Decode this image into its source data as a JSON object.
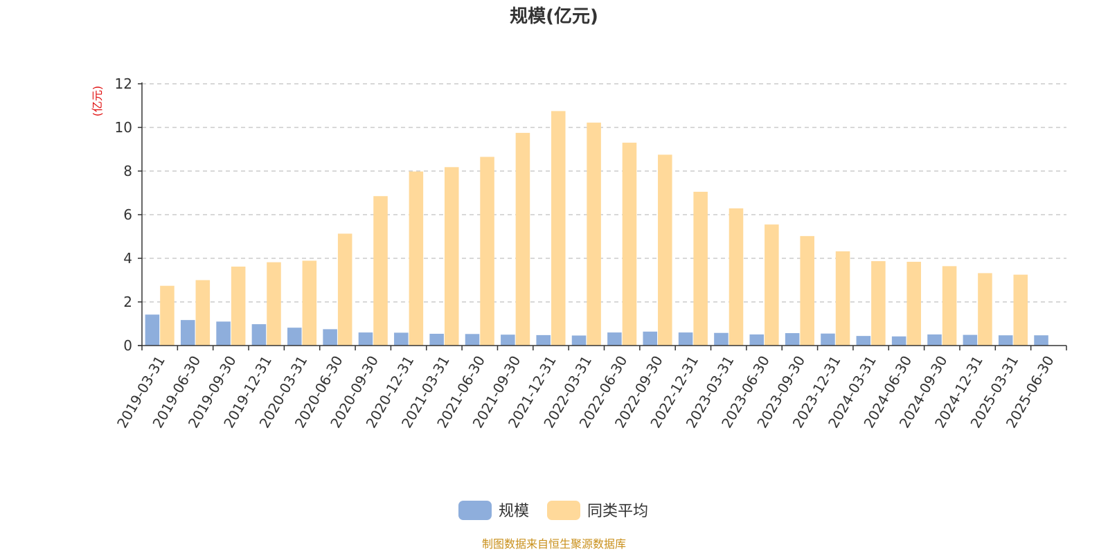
{
  "chart_data": {
    "type": "bar",
    "title": "规模(亿元)",
    "ylabel": "(亿元)",
    "ylim": [
      0,
      12
    ],
    "yticks": [
      0,
      2,
      4,
      6,
      8,
      10,
      12
    ],
    "grid": true,
    "legend_position": "bottom-center",
    "categories": [
      "2019-03-31",
      "2019-06-30",
      "2019-09-30",
      "2019-12-31",
      "2020-03-31",
      "2020-06-30",
      "2020-09-30",
      "2020-12-31",
      "2021-03-31",
      "2021-06-30",
      "2021-09-30",
      "2021-12-31",
      "2022-03-31",
      "2022-06-30",
      "2022-09-30",
      "2022-12-31",
      "2023-03-31",
      "2023-06-30",
      "2023-09-30",
      "2023-12-31",
      "2024-03-31",
      "2024-06-30",
      "2024-09-30",
      "2024-12-31",
      "2025-03-31",
      "2025-06-30"
    ],
    "series": [
      {
        "name": "规模",
        "color": "#8eaedc",
        "values": [
          1.42,
          1.17,
          1.1,
          0.98,
          0.82,
          0.75,
          0.6,
          0.59,
          0.54,
          0.53,
          0.5,
          0.48,
          0.46,
          0.6,
          0.64,
          0.6,
          0.58,
          0.51,
          0.57,
          0.55,
          0.44,
          0.42,
          0.51,
          0.49,
          0.47,
          0.47
        ]
      },
      {
        "name": "同类平均",
        "color": "#ffd99a",
        "values": [
          2.74,
          3.0,
          3.62,
          3.82,
          3.89,
          5.13,
          6.85,
          7.98,
          8.18,
          8.65,
          9.75,
          10.75,
          10.22,
          9.3,
          8.75,
          7.05,
          6.29,
          5.55,
          5.02,
          4.32,
          3.87,
          3.84,
          3.64,
          3.32,
          3.25,
          null
        ]
      }
    ]
  },
  "source_note": "制图数据来自恒生聚源数据库"
}
